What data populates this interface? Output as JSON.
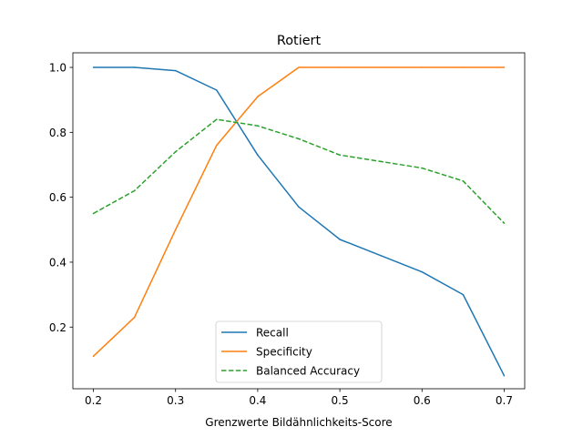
{
  "chart_data": {
    "type": "line",
    "title": "Rotiert",
    "xlabel": "Grenzwerte Bildähnlichkeits-Score",
    "ylabel": "",
    "x": [
      0.2,
      0.25,
      0.3,
      0.35,
      0.4,
      0.45,
      0.5,
      0.55,
      0.6,
      0.65,
      0.7
    ],
    "xlim": [
      0.175,
      0.725
    ],
    "ylim": [
      0.01,
      1.045
    ],
    "xticks": [
      "0.2",
      "0.3",
      "0.4",
      "0.5",
      "0.6",
      "0.7"
    ],
    "yticks": [
      "0.2",
      "0.4",
      "0.6",
      "0.8",
      "1.0"
    ],
    "grid": false,
    "legend_position": "lower center",
    "series": [
      {
        "name": "Recall",
        "color": "#1f77b4",
        "style": "solid",
        "values": [
          1.0,
          1.0,
          0.99,
          0.93,
          0.73,
          0.57,
          0.47,
          0.42,
          0.37,
          0.3,
          0.05
        ]
      },
      {
        "name": "Specificity",
        "color": "#ff7f0e",
        "style": "solid",
        "values": [
          0.11,
          0.23,
          0.5,
          0.76,
          0.91,
          1.0,
          1.0,
          1.0,
          1.0,
          1.0,
          1.0
        ]
      },
      {
        "name": "Balanced Accuracy",
        "color": "#2ca02c",
        "style": "dashed",
        "values": [
          0.55,
          0.62,
          0.74,
          0.84,
          0.82,
          0.78,
          0.73,
          0.71,
          0.69,
          0.65,
          0.52
        ]
      }
    ]
  }
}
